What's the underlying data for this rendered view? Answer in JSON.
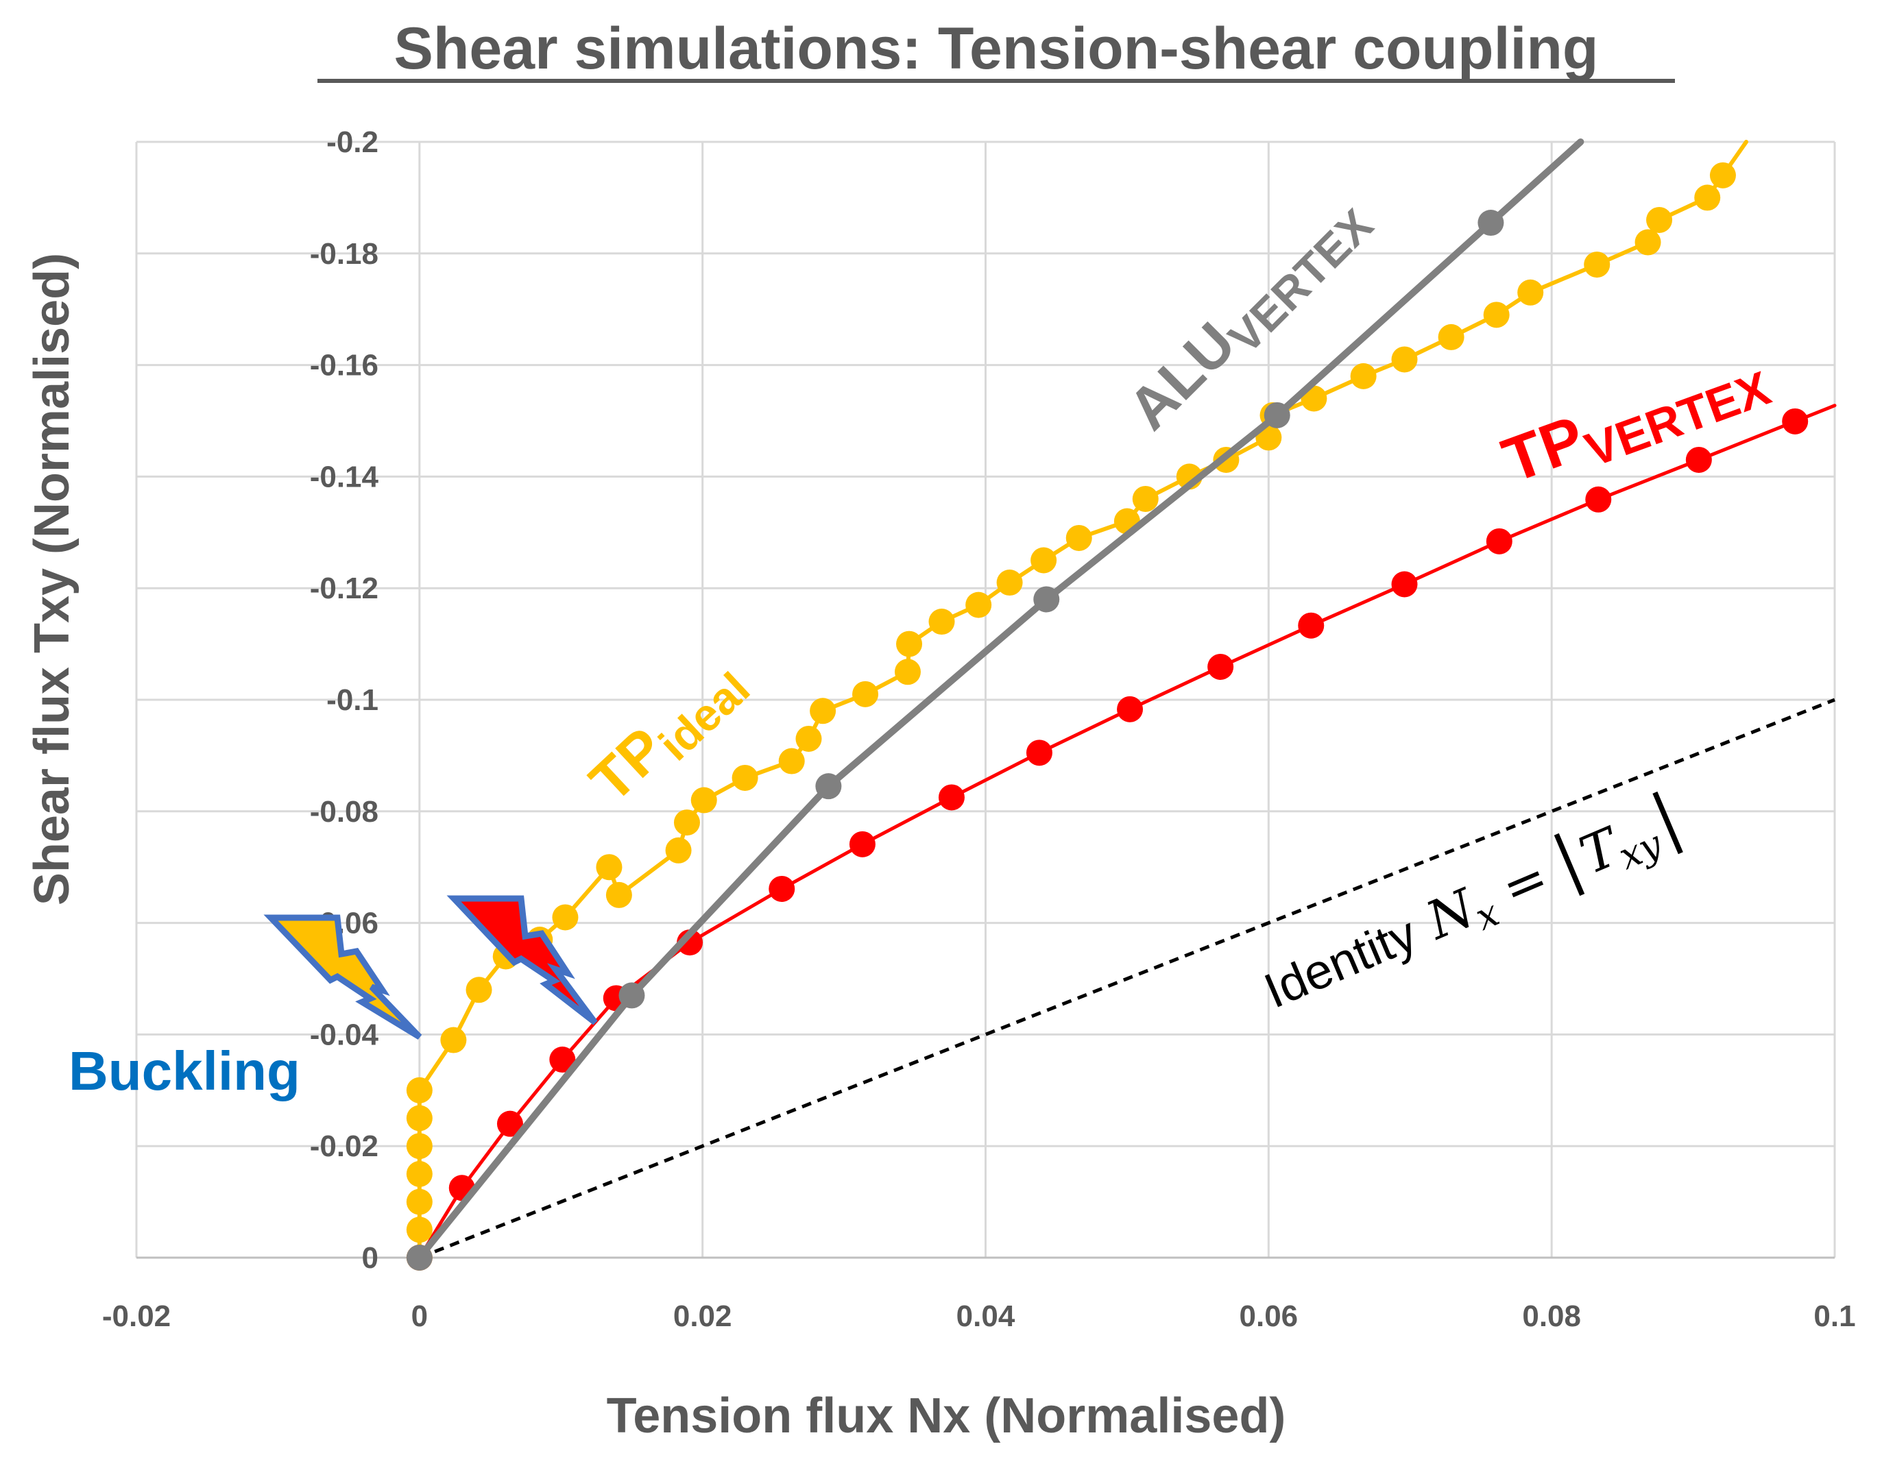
{
  "chart_data": {
    "type": "line",
    "title": "Shear simulations: Tension-shear coupling",
    "xlabel": "Tension flux Nx (Normalised)",
    "ylabel": "Shear flux Txy (Normalised)",
    "xlim": [
      -0.02,
      0.1
    ],
    "ylim": [
      0,
      -0.2
    ],
    "grid": true,
    "x_ticks": [
      "-0.02",
      "0",
      "0.02",
      "0.04",
      "0.06",
      "0.08",
      "0.1"
    ],
    "y_ticks": [
      "0",
      "-0.02",
      "-0.04",
      "-0.06",
      "-0.08",
      "-0.1",
      "-0.12",
      "-0.14",
      "-0.16",
      "-0.18",
      "-0.2"
    ],
    "series": [
      {
        "name": "TP ideal",
        "color": "#ffc000",
        "x": [
          0,
          0,
          0,
          0,
          0,
          0,
          0,
          0.0024,
          0.0042,
          0.0061,
          0.0085,
          0.0103,
          0.0134,
          0.0141,
          0.0183,
          0.0189,
          0.0201,
          0.023,
          0.0263,
          0.0275,
          0.0285,
          0.0315,
          0.0345,
          0.0346,
          0.0369,
          0.0395,
          0.0417,
          0.0441,
          0.0466,
          0.05,
          0.0513,
          0.0544,
          0.057,
          0.06,
          0.0603,
          0.0632,
          0.0667,
          0.0696,
          0.0729,
          0.0761,
          0.0785,
          0.0832,
          0.0868,
          0.0876,
          0.091,
          0.0921
        ],
        "y": [
          0,
          -0.005,
          -0.01,
          -0.015,
          -0.02,
          -0.025,
          -0.03,
          -0.039,
          -0.048,
          -0.054,
          -0.057,
          -0.061,
          -0.07,
          -0.065,
          -0.073,
          -0.078,
          -0.082,
          -0.086,
          -0.089,
          -0.093,
          -0.098,
          -0.101,
          -0.105,
          -0.11,
          -0.114,
          -0.117,
          -0.121,
          -0.125,
          -0.129,
          -0.132,
          -0.136,
          -0.14,
          -0.143,
          -0.147,
          -0.151,
          -0.154,
          -0.158,
          -0.161,
          -0.165,
          -0.169,
          -0.173,
          -0.178,
          -0.182,
          -0.186,
          -0.19,
          -0.194
        ]
      },
      {
        "name": "ALU VERTEX",
        "color": "#808080",
        "x": [
          0,
          0.015,
          0.0289,
          0.0443,
          0.0606,
          0.0757
        ],
        "y": [
          0,
          -0.047,
          -0.0845,
          -0.118,
          -0.151,
          -0.1855
        ]
      },
      {
        "name": "TP VERTEX",
        "color": "#ff0000",
        "x": [
          0,
          0.003,
          0.0064,
          0.0101,
          0.0139,
          0.0191,
          0.0256,
          0.0313,
          0.0376,
          0.0438,
          0.0502,
          0.0566,
          0.063,
          0.0696,
          0.0763,
          0.0833,
          0.0904,
          0.0972
        ],
        "y": [
          0,
          -0.0125,
          -0.024,
          -0.0355,
          -0.0465,
          -0.0565,
          -0.0661,
          -0.0741,
          -0.0825,
          -0.0905,
          -0.0983,
          -0.1059,
          -0.1133,
          -0.1207,
          -0.1284,
          -0.1359,
          -0.143,
          -0.1499
        ]
      },
      {
        "name": "Identity",
        "color": "#000000",
        "style": "dashed",
        "x": [
          0,
          0.1
        ],
        "y": [
          0,
          -0.1
        ]
      }
    ],
    "annotations": {
      "tp_ideal_main": "TP",
      "tp_ideal_sub": "ideal",
      "alu_main": "ALU",
      "alu_sub": "VERTEX",
      "tp_vertex_main": "TP",
      "tp_vertex_sub": "VERTEX",
      "identity_text": "Identity",
      "identity_formula_lhs": "N",
      "identity_formula_lhs_sub": "x",
      "identity_formula_eq": "=",
      "identity_formula_rhs": "T",
      "identity_formula_rhs_sub": "xy",
      "buckling": "Buckling",
      "buckling_color": "#0070c0"
    }
  }
}
